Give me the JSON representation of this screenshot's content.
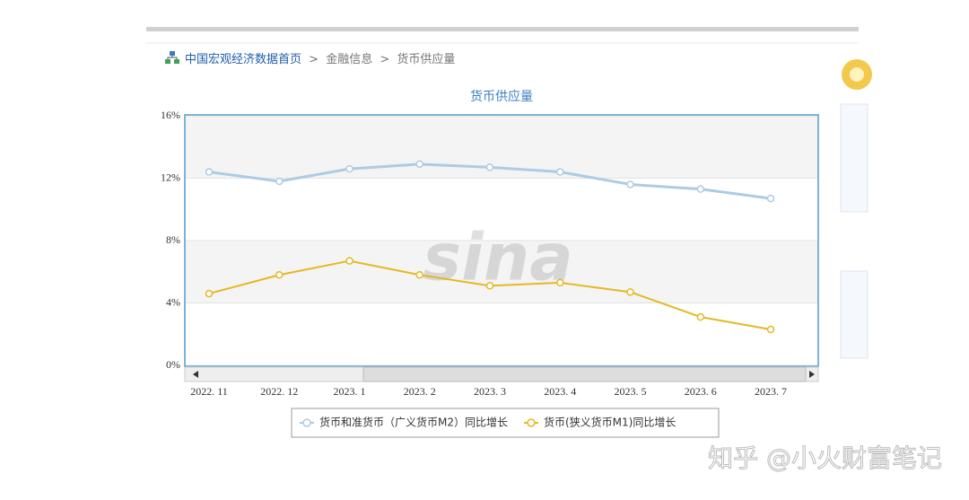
{
  "breadcrumb": {
    "home": "中国宏观经济数据首页",
    "separator": ">",
    "items": [
      "金融信息",
      "货币供应量"
    ]
  },
  "watermark_logo": "sina",
  "watermark": "知乎 @小火财富笔记",
  "chart_data": {
    "type": "line",
    "title": "货币供应量",
    "categories": [
      "2022. 11",
      "2022. 12",
      "2023. 1",
      "2023. 2",
      "2023. 3",
      "2023. 4",
      "2023. 5",
      "2023. 6",
      "2023. 7"
    ],
    "series": [
      {
        "name": "货币和准货币（广义货币M2）同比增长",
        "color": "#aecbe4",
        "values": [
          12.4,
          11.8,
          12.6,
          12.9,
          12.7,
          12.4,
          11.6,
          11.3,
          10.7
        ]
      },
      {
        "name": "货币(狭义货币M1)同比增长",
        "color": "#e6b822",
        "values": [
          4.6,
          5.8,
          6.7,
          5.8,
          5.1,
          5.3,
          4.7,
          3.1,
          2.3
        ]
      }
    ],
    "ylim": [
      0,
      16
    ],
    "yticks": [
      {
        "value": 0,
        "label": "0%"
      },
      {
        "value": 4,
        "label": "4%"
      },
      {
        "value": 8,
        "label": "8%"
      },
      {
        "value": 12,
        "label": "12%"
      },
      {
        "value": 16,
        "label": "16%"
      }
    ],
    "grid": true,
    "legend": "bottom"
  }
}
